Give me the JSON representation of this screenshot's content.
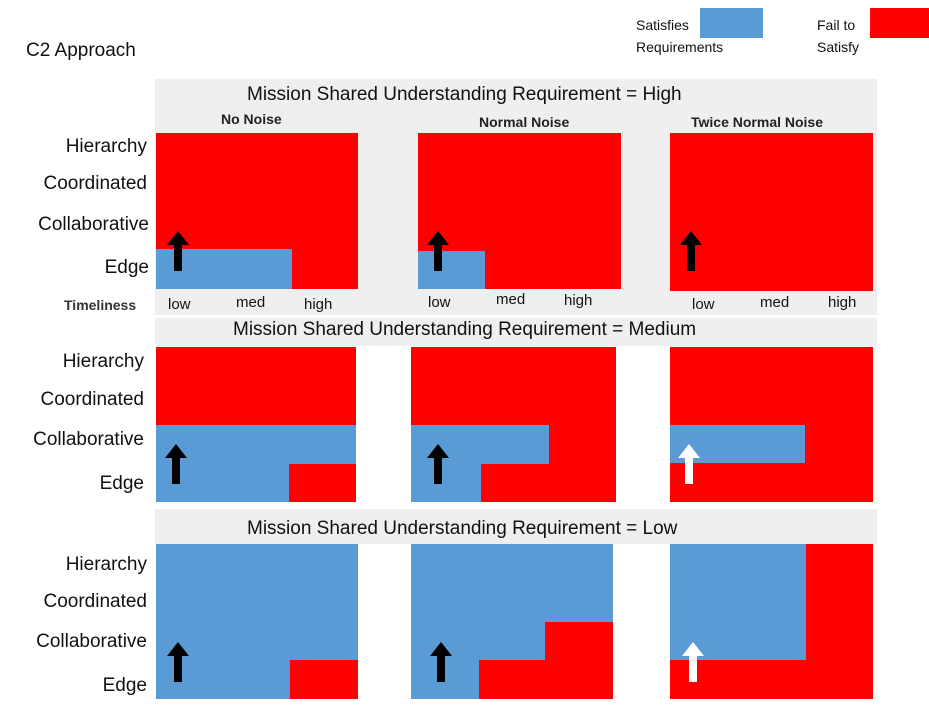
{
  "title": "C2 Approach",
  "legend": {
    "satisfies_line1": "Satisfies",
    "satisfies_line2": "Requirements",
    "fail_line1": "Fail to",
    "fail_line2": "Satisfy",
    "satisfies_color": "#5b9bd5",
    "fail_color": "#ff0000"
  },
  "columns": [
    "No Noise",
    "Normal Noise",
    "Twice Normal Noise"
  ],
  "y_levels": [
    "Hierarchy",
    "Coordinated",
    "Collaborative",
    "Edge"
  ],
  "x_axis": {
    "label": "Timeliness",
    "ticks": [
      "low",
      "med",
      "high"
    ]
  },
  "bands": [
    {
      "title": "Mission Shared Understanding Requirement = High"
    },
    {
      "title": "Mission Shared Understanding Requirement = Medium"
    },
    {
      "title": "Mission Shared Understanding Requirement = Low"
    }
  ],
  "arrow_colors": {
    "black": "#000000",
    "white": "#ffffff"
  }
}
